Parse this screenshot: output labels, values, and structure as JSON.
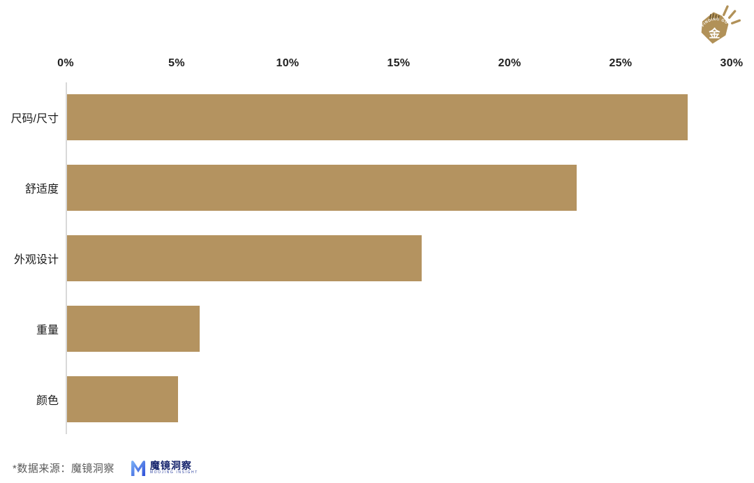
{
  "chart_data": {
    "type": "bar",
    "orientation": "horizontal",
    "title": "",
    "categories": [
      "尺码/尺寸",
      "舒适度",
      "外观设计",
      "重量",
      "颜色"
    ],
    "values": [
      28,
      23,
      16,
      6,
      5
    ],
    "unit": "%",
    "x_ticks": [
      "0%",
      "5%",
      "10%",
      "15%",
      "20%",
      "25%",
      "30%"
    ],
    "xlim": [
      0,
      30
    ],
    "axis_position": "top",
    "grid": false,
    "legend": "none",
    "bar_color": "#b49360",
    "axis_line_color": "#d9d9d9",
    "tick_color": "#1f1f1f",
    "label_color": "#1a1a1a"
  },
  "header_logo": {
    "arc_text": "FINDING GOLD",
    "center_char": "金",
    "color": "#b19158"
  },
  "footer": {
    "source_text": "*数据来源：魔镜洞察",
    "logo": {
      "mark": "M",
      "brand_text": "魔镜洞察",
      "tagline": "MOOJING INSIGHT",
      "brand_color": "#16246d",
      "mark_color_start": "#7db4f7",
      "mark_color_end": "#2f4fd8"
    }
  }
}
